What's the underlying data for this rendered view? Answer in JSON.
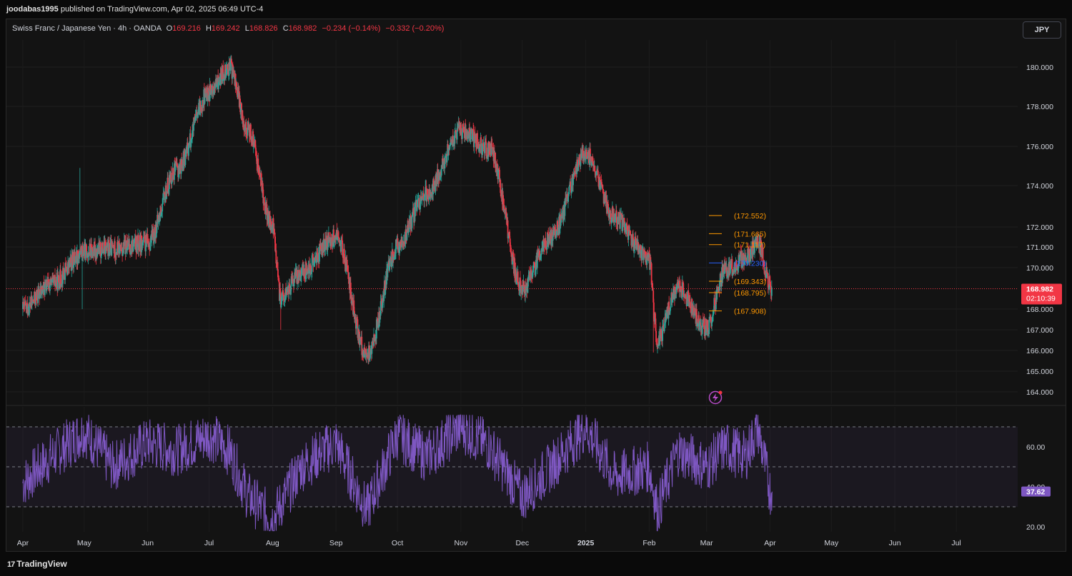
{
  "header": {
    "publisher": "joodabas1995",
    "published_text": "published on TradingView.com, Apr 02, 2025 06:49 UTC-4"
  },
  "legend": {
    "symbol": "Swiss Franc / Japanese Yen · 4h · OANDA",
    "open_label": "O",
    "open": "169.216",
    "high_label": "H",
    "high": "169.242",
    "low_label": "L",
    "low": "168.826",
    "close_label": "C",
    "close": "168.982",
    "change": "−0.234 (−0.14%)",
    "change2": "−0.332 (−0.20%)"
  },
  "currency_button": "JPY",
  "footer": {
    "brand": "TradingView",
    "brand_mark": "17"
  },
  "colors": {
    "up": "#26a69a",
    "down": "#f23645",
    "rsi": "#7e57c2",
    "level_orange": "#ff9800",
    "level_blue": "#2962ff",
    "price_tag": "#f23645"
  },
  "current_price": {
    "value": 168.982,
    "label": "168.982",
    "countdown": "02:10:39"
  },
  "chart_data": [
    {
      "type": "candlestick",
      "symbol": "CHFJPY",
      "interval": "4h",
      "yaxis_ticks": [
        "180.000",
        "178.000",
        "176.000",
        "174.000",
        "172.000",
        "171.000",
        "170.000",
        "168.000",
        "167.000",
        "166.000",
        "165.000",
        "164.000"
      ],
      "ytick_values": [
        180,
        178,
        176,
        174,
        172,
        171,
        170,
        168,
        167,
        166,
        165,
        164
      ],
      "xaxis_ticks": [
        "Apr",
        "May",
        "Jun",
        "Jul",
        "Aug",
        "Sep",
        "Oct",
        "Nov",
        "Dec",
        "2025",
        "Feb",
        "Mar",
        "Apr",
        "May",
        "Jun",
        "Jul"
      ],
      "x": [
        "2024-04-01",
        "2024-04-15",
        "2024-05-01",
        "2024-05-15",
        "2024-06-01",
        "2024-06-15",
        "2024-07-01",
        "2024-07-11",
        "2024-07-20",
        "2024-08-01",
        "2024-08-05",
        "2024-08-15",
        "2024-09-01",
        "2024-09-16",
        "2024-10-01",
        "2024-10-15",
        "2024-11-01",
        "2024-11-15",
        "2024-12-01",
        "2024-12-15",
        "2025-01-01",
        "2025-01-15",
        "2025-02-01",
        "2025-02-05",
        "2025-02-15",
        "2025-03-01",
        "2025-03-10",
        "2025-03-20",
        "2025-03-26",
        "2025-04-01",
        "2025-04-02"
      ],
      "close": [
        168.0,
        169.2,
        170.8,
        170.9,
        171.2,
        174.8,
        178.7,
        180.0,
        176.8,
        172.0,
        168.5,
        169.8,
        171.5,
        165.8,
        171.0,
        173.6,
        176.8,
        175.8,
        169.0,
        171.5,
        175.6,
        172.5,
        170.3,
        166.5,
        169.0,
        167.1,
        169.8,
        170.5,
        171.2,
        169.2,
        168.982
      ],
      "levels": [
        {
          "label": "(172.552)",
          "value": 172.552,
          "color": "#ff9800"
        },
        {
          "label": "(171.665)",
          "value": 171.665,
          "color": "#ff9800"
        },
        {
          "label": "(171.117)",
          "value": 171.117,
          "color": "#ff9800"
        },
        {
          "label": "(170.230)",
          "value": 170.23,
          "color": "#2962ff"
        },
        {
          "label": "(169.343)",
          "value": 169.343,
          "color": "#ff9800"
        },
        {
          "label": "(168.795)",
          "value": 168.795,
          "color": "#ff9800"
        },
        {
          "label": "(167.908)",
          "value": 167.908,
          "color": "#ff9800"
        }
      ]
    },
    {
      "type": "line",
      "name": "RSI",
      "yaxis_ticks": [
        "60.00",
        "40.00",
        "20.00"
      ],
      "ytick_values": [
        60,
        40,
        20
      ],
      "bands": [
        70,
        50,
        30
      ],
      "current": {
        "value": 37.62,
        "label": "37.62"
      },
      "x": [
        "2024-04-01",
        "2024-04-15",
        "2024-05-01",
        "2024-05-15",
        "2024-06-01",
        "2024-06-15",
        "2024-07-01",
        "2024-07-11",
        "2024-07-20",
        "2024-08-01",
        "2024-08-05",
        "2024-08-15",
        "2024-09-01",
        "2024-09-16",
        "2024-10-01",
        "2024-10-15",
        "2024-11-01",
        "2024-11-15",
        "2024-12-01",
        "2024-12-15",
        "2025-01-01",
        "2025-01-15",
        "2025-02-01",
        "2025-02-05",
        "2025-02-15",
        "2025-03-01",
        "2025-03-10",
        "2025-03-20",
        "2025-03-26",
        "2025-04-01",
        "2025-04-02"
      ],
      "values": [
        42,
        55,
        68,
        50,
        62,
        58,
        66,
        58,
        35,
        24,
        31,
        50,
        62,
        28,
        66,
        55,
        70,
        60,
        35,
        50,
        70,
        45,
        50,
        28,
        58,
        50,
        60,
        55,
        70,
        38,
        37.62
      ]
    }
  ]
}
